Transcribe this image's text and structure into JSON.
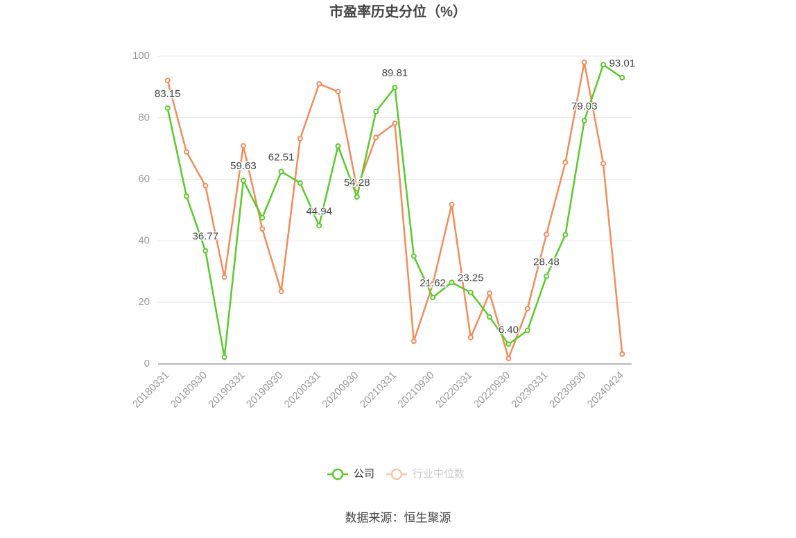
{
  "chart_data": {
    "type": "line",
    "title": "市盈率历史分位（%）",
    "source": "数据来源：恒生聚源",
    "categories": [
      "20180331",
      null,
      "20180930",
      null,
      "20190331",
      null,
      "20190930",
      null,
      "20200331",
      null,
      "20200930",
      null,
      "20210331",
      null,
      "20210930",
      null,
      "20220331",
      null,
      "20220930",
      null,
      "20230331",
      null,
      "20230930",
      null,
      "20240424"
    ],
    "series": [
      {
        "name": "公司",
        "color": "#5bc92a",
        "values": [
          83.15,
          54.5,
          36.77,
          2.2,
          59.63,
          47.5,
          62.51,
          58.8,
          44.94,
          70.8,
          54.28,
          82,
          89.81,
          35,
          21.62,
          26.5,
          23.25,
          15.3,
          6.4,
          10.9,
          28.48,
          42,
          79.03,
          97.2,
          93.01
        ],
        "value_labels": [
          "83.15",
          null,
          "36.77",
          null,
          "59.63",
          null,
          "62.51",
          null,
          "44.94",
          null,
          "54.28",
          null,
          "89.81",
          null,
          "21.62",
          null,
          "23.25",
          null,
          "6.40",
          null,
          "28.48",
          null,
          "79.03",
          null,
          "93.01"
        ]
      },
      {
        "name": "行业中位数",
        "color": "#f28c5a",
        "values": [
          92.1,
          68.9,
          57.9,
          28.2,
          70.9,
          43.9,
          23.6,
          73.2,
          91,
          88.5,
          57,
          73.6,
          78.2,
          7.4,
          25.9,
          51.8,
          8.6,
          23,
          1.8,
          18,
          42.1,
          65.5,
          98,
          65.1,
          3.2
        ]
      }
    ],
    "ylim": [
      0,
      100
    ],
    "yticks": [
      0,
      20,
      40,
      60,
      80,
      100
    ],
    "grid": true,
    "legend": "bottom"
  }
}
